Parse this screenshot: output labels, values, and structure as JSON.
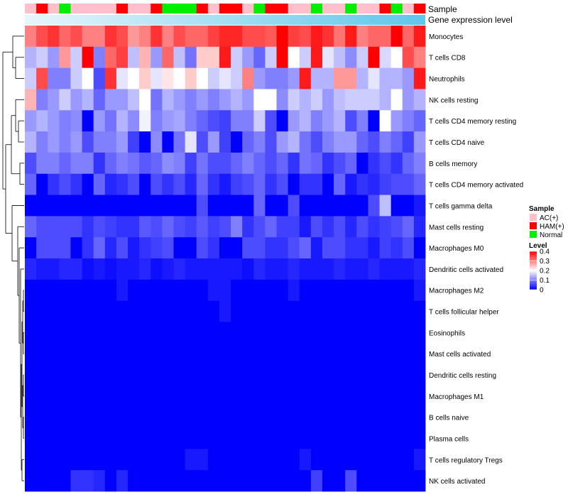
{
  "chart_data": {
    "type": "heatmap",
    "title": "",
    "annotation_tracks": [
      "Sample",
      "Gene expression level"
    ],
    "sample_groups": [
      "AC(+)",
      "HAM(+)",
      "AC(+)",
      "Normal",
      "AC(+)",
      "AC(+)",
      "AC(+)",
      "AC(+)",
      "HAM(+)",
      "AC(+)",
      "AC(+)",
      "HAM(+)",
      "Normal",
      "Normal",
      "Normal",
      "HAM(+)",
      "AC(+)",
      "HAM(+)",
      "HAM(+)",
      "AC(+)",
      "Normal",
      "HAM(+)",
      "HAM(+)",
      "AC(+)",
      "AC(+)",
      "Normal",
      "AC(+)",
      "AC(+)",
      "Normal",
      "AC(+)",
      "AC(+)",
      "HAM(+)",
      "Normal",
      "AC(+)",
      "HAM(+)"
    ],
    "rows": [
      "Monocytes",
      "T cells CD8",
      "Neutrophils",
      "NK cells resting",
      "T cells CD4 memory resting",
      "T cells CD4 naive",
      "B cells memory",
      "T cells CD4 memory activated",
      "T cells gamma delta",
      "Mast cells resting",
      "Macrophages M0",
      "Dendritic cells activated",
      "Macrophages M2",
      "T cells follicular helper",
      "Eosinophils",
      "Mast cells activated",
      "Dendritic cells resting",
      "Macrophages M1",
      "B cells naive",
      "Plasma cells",
      "T cells regulatory  Tregs",
      "NK cells activated"
    ],
    "values": [
      [
        0.3,
        0.34,
        0.36,
        0.32,
        0.34,
        0.3,
        0.3,
        0.36,
        0.34,
        0.28,
        0.3,
        0.36,
        0.3,
        0.34,
        0.32,
        0.32,
        0.35,
        0.37,
        0.37,
        0.34,
        0.34,
        0.33,
        0.4,
        0.35,
        0.34,
        0.38,
        0.36,
        0.31,
        0.38,
        0.3,
        0.32,
        0.32,
        0.4,
        0.32,
        0.38
      ],
      [
        0.14,
        0.16,
        0.12,
        0.28,
        0.16,
        0.4,
        0.1,
        0.32,
        0.35,
        0.15,
        0.26,
        0.12,
        0.32,
        0.15,
        0.09,
        0.24,
        0.24,
        0.38,
        0.16,
        0.12,
        0.08,
        0.16,
        0.4,
        0.2,
        0.16,
        0.38,
        0.18,
        0.15,
        0.11,
        0.16,
        0.4,
        0.17,
        0.2,
        0.34,
        0.3
      ],
      [
        0.16,
        0.34,
        0.1,
        0.1,
        0.16,
        0.2,
        0.06,
        0.36,
        0.18,
        0.2,
        0.24,
        0.18,
        0.22,
        0.2,
        0.24,
        0.2,
        0.16,
        0.18,
        0.16,
        0.3,
        0.12,
        0.1,
        0.1,
        0.12,
        0.38,
        0.14,
        0.14,
        0.28,
        0.28,
        0.14,
        0.18,
        0.14,
        0.14,
        0.12,
        0.38
      ],
      [
        0.26,
        0.1,
        0.12,
        0.16,
        0.12,
        0.14,
        0.08,
        0.12,
        0.12,
        0.15,
        0.2,
        0.09,
        0.14,
        0.12,
        0.1,
        0.12,
        0.1,
        0.12,
        0.14,
        0.12,
        0.2,
        0.2,
        0.11,
        0.16,
        0.14,
        0.16,
        0.12,
        0.15,
        0.16,
        0.16,
        0.16,
        0.14,
        0.2,
        0.12,
        0.14
      ],
      [
        0.12,
        0.14,
        0.12,
        0.1,
        0.11,
        0.0,
        0.12,
        0.09,
        0.14,
        0.11,
        0.19,
        0.1,
        0.12,
        0.13,
        0.1,
        0.08,
        0.06,
        0.05,
        0.1,
        0.1,
        0.16,
        0.06,
        0.0,
        0.12,
        0.14,
        0.1,
        0.12,
        0.14,
        0.06,
        0.1,
        0.0,
        0.2,
        0.12,
        0.1,
        0.08
      ],
      [
        0.14,
        0.1,
        0.12,
        0.1,
        0.12,
        0.06,
        0.1,
        0.1,
        0.12,
        0.05,
        0.0,
        0.11,
        0.0,
        0.09,
        0.18,
        0.06,
        0.12,
        0.05,
        0.0,
        0.08,
        0.1,
        0.06,
        0.12,
        0.14,
        0.09,
        0.06,
        0.1,
        0.12,
        0.12,
        0.08,
        0.06,
        0.1,
        0.08,
        0.05,
        0.12
      ],
      [
        0.06,
        0.1,
        0.1,
        0.08,
        0.1,
        0.1,
        0.04,
        0.08,
        0.1,
        0.09,
        0.07,
        0.08,
        0.11,
        0.1,
        0.05,
        0.09,
        0.06,
        0.06,
        0.08,
        0.1,
        0.08,
        0.06,
        0.08,
        0.04,
        0.09,
        0.08,
        0.04,
        0.06,
        0.08,
        0.0,
        0.04,
        0.06,
        0.04,
        0.08,
        0.1
      ],
      [
        0.08,
        0.0,
        0.04,
        0.06,
        0.04,
        0.0,
        0.08,
        0.03,
        0.04,
        0.06,
        0.0,
        0.06,
        0.04,
        0.06,
        0.03,
        0.08,
        0.04,
        0.02,
        0.05,
        0.06,
        0.08,
        0.04,
        0.06,
        0.0,
        0.04,
        0.04,
        0.0,
        0.08,
        0.02,
        0.04,
        0.03,
        0.05,
        0.06,
        0.06,
        0.08
      ],
      [
        0.0,
        0.0,
        0.0,
        0.0,
        0.0,
        0.0,
        0.0,
        0.0,
        0.0,
        0.0,
        0.0,
        0.0,
        0.0,
        0.0,
        0.0,
        0.06,
        0.0,
        0.0,
        0.0,
        0.0,
        0.08,
        0.0,
        0.0,
        0.06,
        0.0,
        0.0,
        0.0,
        0.0,
        0.0,
        0.0,
        0.06,
        0.15,
        0.0,
        0.0,
        0.02
      ],
      [
        0.08,
        0.06,
        0.06,
        0.06,
        0.06,
        0.04,
        0.06,
        0.05,
        0.04,
        0.04,
        0.07,
        0.06,
        0.08,
        0.06,
        0.05,
        0.07,
        0.05,
        0.06,
        0.1,
        0.04,
        0.06,
        0.08,
        0.05,
        0.05,
        0.02,
        0.06,
        0.04,
        0.06,
        0.03,
        0.06,
        0.04,
        0.05,
        0.06,
        0.08,
        0.03
      ],
      [
        0.0,
        0.06,
        0.06,
        0.06,
        0.0,
        0.04,
        0.08,
        0.03,
        0.06,
        0.02,
        0.04,
        0.05,
        0.06,
        0.0,
        0.0,
        0.06,
        0.04,
        0.0,
        0.0,
        0.06,
        0.06,
        0.04,
        0.04,
        0.06,
        0.08,
        0.02,
        0.06,
        0.06,
        0.04,
        0.04,
        0.02,
        0.05,
        0.04,
        0.06,
        0.0
      ],
      [
        0.03,
        0.02,
        0.02,
        0.03,
        0.03,
        0.01,
        0.02,
        0.01,
        0.02,
        0.02,
        0.03,
        0.01,
        0.02,
        0.03,
        0.02,
        0.02,
        0.02,
        0.02,
        0.02,
        0.01,
        0.03,
        0.02,
        0.02,
        0.03,
        0.02,
        0.02,
        0.02,
        0.03,
        0.02,
        0.02,
        0.03,
        0.02,
        0.02,
        0.02,
        0.03
      ],
      [
        0.0,
        0.0,
        0.0,
        0.0,
        0.0,
        0.0,
        0.0,
        0.0,
        0.02,
        0.0,
        0.0,
        0.0,
        0.0,
        0.0,
        0.0,
        0.0,
        0.02,
        0.02,
        0.0,
        0.0,
        0.0,
        0.0,
        0.0,
        0.02,
        0.0,
        0.0,
        0.0,
        0.0,
        0.0,
        0.0,
        0.0,
        0.0,
        0.0,
        0.0,
        0.02
      ],
      [
        0.0,
        0.0,
        0.0,
        0.0,
        0.0,
        0.0,
        0.0,
        0.0,
        0.0,
        0.0,
        0.0,
        0.0,
        0.0,
        0.0,
        0.0,
        0.0,
        0.0,
        0.02,
        0.0,
        0.0,
        0.0,
        0.0,
        0.0,
        0.0,
        0.0,
        0.0,
        0.0,
        0.0,
        0.0,
        0.0,
        0.0,
        0.0,
        0.0,
        0.0,
        0.0
      ],
      [
        0.0,
        0.0,
        0.0,
        0.0,
        0.0,
        0.0,
        0.0,
        0.0,
        0.0,
        0.0,
        0.0,
        0.0,
        0.0,
        0.0,
        0.0,
        0.0,
        0.0,
        0.0,
        0.0,
        0.0,
        0.0,
        0.0,
        0.0,
        0.0,
        0.0,
        0.0,
        0.0,
        0.0,
        0.0,
        0.0,
        0.0,
        0.0,
        0.0,
        0.0,
        0.0
      ],
      [
        0.0,
        0.0,
        0.0,
        0.0,
        0.0,
        0.0,
        0.0,
        0.0,
        0.0,
        0.0,
        0.0,
        0.0,
        0.0,
        0.0,
        0.0,
        0.0,
        0.0,
        0.0,
        0.0,
        0.0,
        0.0,
        0.0,
        0.0,
        0.0,
        0.0,
        0.0,
        0.0,
        0.0,
        0.0,
        0.0,
        0.0,
        0.0,
        0.0,
        0.0,
        0.0
      ],
      [
        0.0,
        0.0,
        0.0,
        0.0,
        0.0,
        0.0,
        0.0,
        0.0,
        0.0,
        0.0,
        0.0,
        0.0,
        0.0,
        0.0,
        0.0,
        0.0,
        0.0,
        0.0,
        0.0,
        0.0,
        0.0,
        0.0,
        0.0,
        0.0,
        0.0,
        0.0,
        0.0,
        0.0,
        0.0,
        0.0,
        0.0,
        0.0,
        0.0,
        0.0,
        0.0
      ],
      [
        0.0,
        0.0,
        0.0,
        0.0,
        0.0,
        0.0,
        0.0,
        0.0,
        0.0,
        0.0,
        0.0,
        0.0,
        0.0,
        0.0,
        0.0,
        0.0,
        0.0,
        0.0,
        0.0,
        0.0,
        0.0,
        0.0,
        0.0,
        0.0,
        0.0,
        0.0,
        0.0,
        0.0,
        0.0,
        0.0,
        0.0,
        0.0,
        0.0,
        0.0,
        0.0
      ],
      [
        0.0,
        0.0,
        0.0,
        0.0,
        0.0,
        0.0,
        0.0,
        0.0,
        0.0,
        0.0,
        0.0,
        0.0,
        0.0,
        0.0,
        0.0,
        0.0,
        0.0,
        0.0,
        0.0,
        0.0,
        0.0,
        0.0,
        0.0,
        0.0,
        0.0,
        0.0,
        0.0,
        0.0,
        0.0,
        0.0,
        0.0,
        0.0,
        0.0,
        0.0,
        0.0
      ],
      [
        0.0,
        0.0,
        0.0,
        0.0,
        0.0,
        0.0,
        0.0,
        0.0,
        0.0,
        0.0,
        0.0,
        0.0,
        0.0,
        0.0,
        0.0,
        0.0,
        0.0,
        0.0,
        0.0,
        0.0,
        0.0,
        0.0,
        0.0,
        0.0,
        0.0,
        0.0,
        0.0,
        0.0,
        0.0,
        0.0,
        0.0,
        0.0,
        0.0,
        0.0,
        0.0
      ],
      [
        0.0,
        0.0,
        0.0,
        0.0,
        0.0,
        0.0,
        0.0,
        0.0,
        0.0,
        0.0,
        0.0,
        0.0,
        0.0,
        0.0,
        0.02,
        0.02,
        0.0,
        0.0,
        0.0,
        0.0,
        0.0,
        0.0,
        0.0,
        0.0,
        0.02,
        0.0,
        0.0,
        0.0,
        0.0,
        0.0,
        0.0,
        0.0,
        0.0,
        0.0,
        0.02
      ],
      [
        0.0,
        0.0,
        0.0,
        0.0,
        0.04,
        0.04,
        0.03,
        0.0,
        0.03,
        0.0,
        0.0,
        0.0,
        0.0,
        0.0,
        0.0,
        0.0,
        0.0,
        0.0,
        0.0,
        0.0,
        0.0,
        0.0,
        0.0,
        0.0,
        0.0,
        0.05,
        0.0,
        0.0,
        0.06,
        0.0,
        0.0,
        0.0,
        0.0,
        0.0,
        0.0
      ]
    ],
    "color_scale": {
      "min": 0,
      "max": 0.4,
      "low": "#0000ff",
      "mid": "#ffffff",
      "high": "#ff0000"
    },
    "expression_bar": {
      "start": "#e8f6fc",
      "end": "#5fc6ea"
    },
    "legend": {
      "sample_title": "Sample",
      "sample_items": [
        {
          "label": "AC(+)",
          "color": "#ffc0cb"
        },
        {
          "label": "HAM(+)",
          "color": "#ff0000"
        },
        {
          "label": "Normal",
          "color": "#00ee00"
        }
      ],
      "level_title": "Level",
      "level_ticks": [
        0.4,
        0.3,
        0.2,
        0.1,
        0
      ],
      "position": "right"
    }
  }
}
